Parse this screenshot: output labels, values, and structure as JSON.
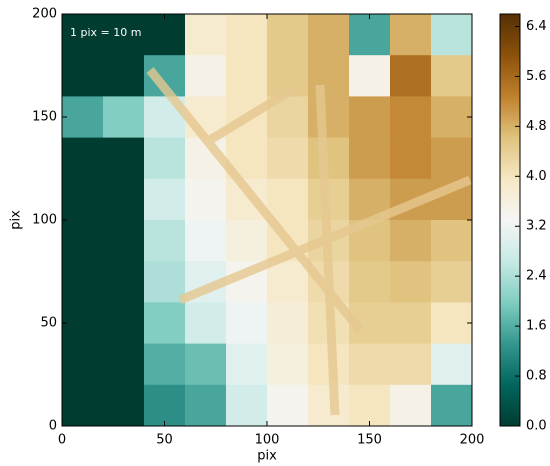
{
  "chart_data": {
    "type": "heatmap",
    "annotation": "1 pix = 10 m",
    "x_label": "pix",
    "y_label": "pix",
    "xlim": [
      0,
      200
    ],
    "ylim": [
      0,
      200
    ],
    "xticks": [
      0,
      50,
      100,
      150,
      200
    ],
    "yticks": [
      0,
      50,
      100,
      150,
      200
    ],
    "x": [
      10,
      30,
      50,
      70,
      90,
      110,
      130,
      150,
      170,
      190
    ],
    "y": [
      190,
      170,
      150,
      130,
      110,
      90,
      70,
      50,
      30,
      10
    ],
    "z": [
      [
        0,
        0,
        0,
        3.8,
        4.0,
        4.5,
        4.8,
        1.5,
        4.8,
        2.5
      ],
      [
        0,
        0,
        1.5,
        3.5,
        4.0,
        4.5,
        4.8,
        3.5,
        5.5,
        4.5
      ],
      [
        1.5,
        2.0,
        2.8,
        3.8,
        4.0,
        4.3,
        4.8,
        5.0,
        5.2,
        4.8
      ],
      [
        0,
        0,
        2.5,
        3.5,
        4.0,
        4.2,
        4.6,
        5.0,
        5.2,
        5.0
      ],
      [
        0,
        0,
        2.8,
        3.4,
        3.8,
        4.0,
        4.4,
        4.8,
        5.0,
        5.0
      ],
      [
        0,
        0,
        2.5,
        3.2,
        3.6,
        4.0,
        4.3,
        4.6,
        4.8,
        4.6
      ],
      [
        0,
        0,
        2.4,
        3.0,
        3.4,
        3.8,
        4.2,
        4.5,
        4.6,
        4.4
      ],
      [
        0,
        0,
        2.0,
        2.8,
        3.2,
        3.7,
        4.1,
        4.4,
        4.4,
        4.0
      ],
      [
        0,
        0,
        1.6,
        1.8,
        3.0,
        3.6,
        4.0,
        4.2,
        4.2,
        3.0
      ],
      [
        0,
        0,
        1.2,
        1.5,
        2.8,
        3.4,
        3.8,
        4.0,
        3.5,
        1.5
      ]
    ],
    "cmap": "BrBG_r",
    "clim": [
      0,
      6.6
    ],
    "colorbar_ticks": [
      {
        "value": 0,
        "label": "0.0"
      },
      0.8,
      1.6,
      2.4,
      3.2,
      {
        "value": 4,
        "label": "4.0"
      },
      4.8,
      5.6,
      6.4
    ]
  }
}
